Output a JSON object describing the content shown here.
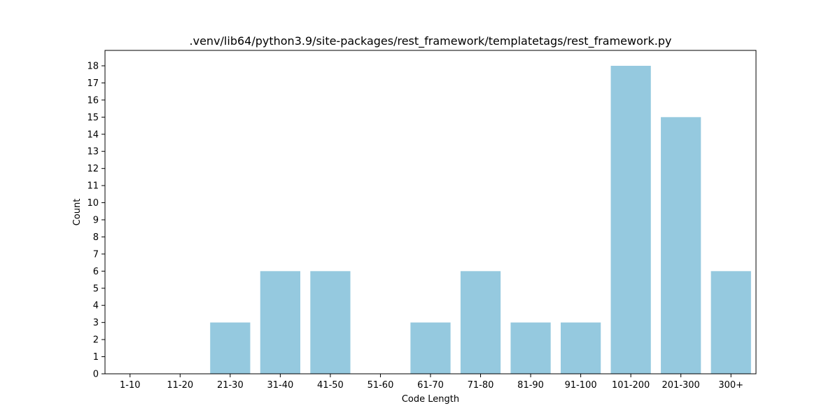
{
  "chart_data": {
    "type": "bar",
    "title": ".venv/lib64/python3.9/site-packages/rest_framework/templatetags/rest_framework.py",
    "xlabel": "Code Length",
    "ylabel": "Count",
    "categories": [
      "1-10",
      "11-20",
      "21-30",
      "31-40",
      "41-50",
      "51-60",
      "61-70",
      "71-80",
      "81-90",
      "91-100",
      "101-200",
      "201-300",
      "300+"
    ],
    "values": [
      0,
      0,
      3,
      6,
      6,
      0,
      3,
      6,
      3,
      3,
      18,
      15,
      6
    ],
    "ylim": [
      0,
      18.9
    ],
    "yticks": [
      0,
      1,
      2,
      3,
      4,
      5,
      6,
      7,
      8,
      9,
      10,
      11,
      12,
      13,
      14,
      15,
      16,
      17,
      18
    ],
    "grid": false,
    "bar_color": "#95c9df"
  }
}
